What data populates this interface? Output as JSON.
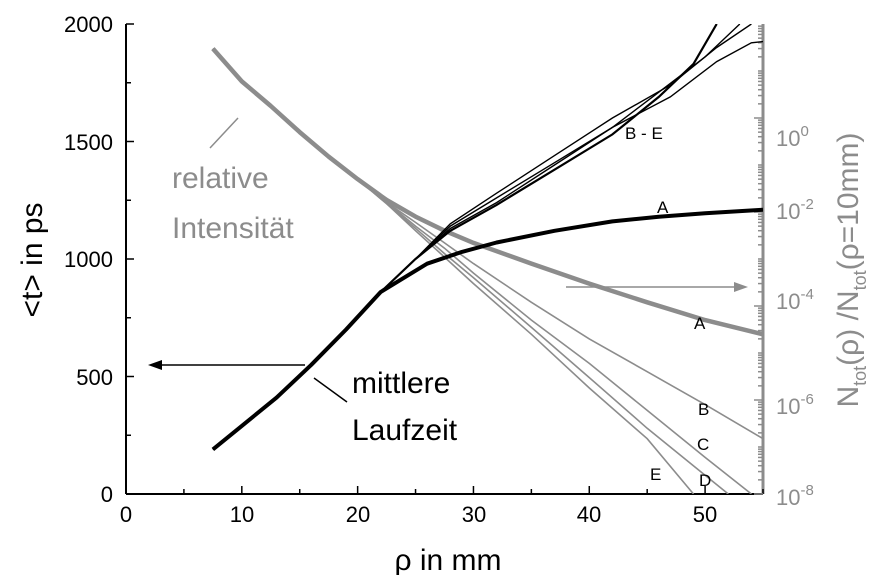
{
  "chart_data": {
    "type": "line",
    "xlabel": "ρ in mm",
    "ylabel_left": "<t> in ps",
    "ylabel_right": {
      "base": "N",
      "sub1": "tot",
      "mid": "(ρ) /N",
      "sub2": "tot",
      "tail": "(ρ=10mm)"
    },
    "xlim": [
      0,
      55
    ],
    "ylim_left": [
      0,
      2000
    ],
    "ylim_right": [
      1e-08,
      100
    ],
    "yscale_right": "log",
    "x_ticks": [
      "0",
      "10",
      "20",
      "30",
      "40",
      "50"
    ],
    "y_left_ticks": [
      "0",
      "500",
      "1000",
      "1500",
      "2000"
    ],
    "y_right_ticks": [
      {
        "base": "10",
        "exp": "0",
        "value": 1
      },
      {
        "base": "10",
        "exp": "-2",
        "value": 0.01
      },
      {
        "base": "10",
        "exp": "-4",
        "value": 0.0001
      },
      {
        "base": "10",
        "exp": "-6",
        "value": 1e-06
      },
      {
        "base": "10",
        "exp": "-8",
        "value": 1e-08
      }
    ],
    "colors": {
      "time": "#000000",
      "intensity": "#8c8c8c"
    },
    "time_series": [
      {
        "name": "A",
        "points": [
          [
            7.5,
            190
          ],
          [
            10,
            290
          ],
          [
            13,
            410
          ],
          [
            16,
            550
          ],
          [
            19,
            700
          ],
          [
            22,
            860
          ],
          [
            26,
            980
          ],
          [
            29,
            1030
          ],
          [
            32,
            1070
          ],
          [
            37,
            1120
          ],
          [
            42,
            1160
          ],
          [
            46,
            1180
          ],
          [
            50,
            1195
          ],
          [
            55,
            1210
          ]
        ]
      },
      {
        "name": "B - E",
        "points": [
          [
            7.5,
            190
          ],
          [
            10,
            290
          ],
          [
            13,
            410
          ],
          [
            16,
            550
          ],
          [
            19,
            700
          ],
          [
            22,
            860
          ],
          [
            25,
            1000
          ],
          [
            28,
            1130
          ],
          [
            32,
            1240
          ],
          [
            37,
            1400
          ],
          [
            42,
            1560
          ],
          [
            47,
            1690
          ],
          [
            51,
            1840
          ],
          [
            54,
            1920
          ],
          [
            55,
            1925
          ]
        ]
      },
      {
        "name": "",
        "points": [
          [
            7.5,
            190
          ],
          [
            10,
            290
          ],
          [
            13,
            410
          ],
          [
            16,
            550
          ],
          [
            19,
            700
          ],
          [
            22,
            860
          ],
          [
            25,
            1000
          ],
          [
            28,
            1150
          ],
          [
            32,
            1280
          ],
          [
            37,
            1440
          ],
          [
            42,
            1600
          ],
          [
            47,
            1740
          ],
          [
            51,
            1900
          ],
          [
            54,
            2000
          ]
        ]
      },
      {
        "name": "",
        "points": [
          [
            7.5,
            190
          ],
          [
            10,
            290
          ],
          [
            13,
            410
          ],
          [
            16,
            550
          ],
          [
            19,
            700
          ],
          [
            22,
            860
          ],
          [
            25,
            1000
          ],
          [
            28,
            1140
          ],
          [
            32,
            1260
          ],
          [
            37,
            1410
          ],
          [
            42,
            1560
          ],
          [
            46,
            1710
          ],
          [
            50,
            1860
          ],
          [
            53,
            2000
          ]
        ]
      },
      {
        "name": "",
        "points": [
          [
            7.5,
            190
          ],
          [
            10,
            290
          ],
          [
            13,
            410
          ],
          [
            16,
            550
          ],
          [
            19,
            700
          ],
          [
            22,
            860
          ],
          [
            25,
            1000
          ],
          [
            28,
            1120
          ],
          [
            32,
            1230
          ],
          [
            37,
            1380
          ],
          [
            42,
            1530
          ],
          [
            46,
            1690
          ],
          [
            49,
            1830
          ],
          [
            51,
            2000
          ]
        ]
      }
    ],
    "intensity_series": [
      {
        "name": "A",
        "points": [
          [
            7.5,
            30
          ],
          [
            10,
            6
          ],
          [
            12.5,
            1.8
          ],
          [
            15,
            0.5
          ],
          [
            17.5,
            0.15
          ],
          [
            20,
            0.05
          ],
          [
            22.5,
            0.018
          ],
          [
            25,
            0.008
          ],
          [
            27.5,
            0.004
          ],
          [
            30,
            0.0022
          ],
          [
            35,
            0.0008
          ],
          [
            40,
            0.0003
          ],
          [
            45,
            0.00012
          ],
          [
            50,
            5e-05
          ],
          [
            55,
            2.5e-05
          ]
        ]
      },
      {
        "name": "B",
        "points": [
          [
            7.5,
            30
          ],
          [
            10,
            6
          ],
          [
            12.5,
            1.8
          ],
          [
            15,
            0.5
          ],
          [
            17.5,
            0.15
          ],
          [
            20,
            0.05
          ],
          [
            22.5,
            0.016
          ],
          [
            25,
            0.006
          ],
          [
            27.5,
            0.0022
          ],
          [
            30,
            0.0008
          ],
          [
            35,
            0.00012
          ],
          [
            40,
            2e-05
          ],
          [
            45,
            4e-06
          ],
          [
            50,
            8e-07
          ],
          [
            55,
            1.5e-07
          ]
        ]
      },
      {
        "name": "C",
        "points": [
          [
            7.5,
            30
          ],
          [
            10,
            6
          ],
          [
            12.5,
            1.8
          ],
          [
            15,
            0.5
          ],
          [
            17.5,
            0.15
          ],
          [
            20,
            0.05
          ],
          [
            22.5,
            0.016
          ],
          [
            25,
            0.005
          ],
          [
            27.5,
            0.0017
          ],
          [
            30,
            0.0005
          ],
          [
            35,
            5e-05
          ],
          [
            40,
            6e-06
          ],
          [
            45,
            6e-07
          ],
          [
            50,
            6e-08
          ],
          [
            54,
            1e-08
          ]
        ]
      },
      {
        "name": "D",
        "points": [
          [
            7.5,
            30
          ],
          [
            10,
            6
          ],
          [
            12.5,
            1.8
          ],
          [
            15,
            0.5
          ],
          [
            17.5,
            0.15
          ],
          [
            20,
            0.05
          ],
          [
            22.5,
            0.015
          ],
          [
            25,
            0.0045
          ],
          [
            27.5,
            0.0013
          ],
          [
            30,
            0.0004
          ],
          [
            35,
            3.5e-05
          ],
          [
            40,
            3e-06
          ],
          [
            45,
            2.5e-07
          ],
          [
            50,
            2.5e-08
          ],
          [
            52,
            1e-08
          ]
        ]
      },
      {
        "name": "E",
        "points": [
          [
            7.5,
            30
          ],
          [
            10,
            6
          ],
          [
            12.5,
            1.8
          ],
          [
            15,
            0.5
          ],
          [
            17.5,
            0.15
          ],
          [
            20,
            0.05
          ],
          [
            22.5,
            0.015
          ],
          [
            25,
            0.004
          ],
          [
            27.5,
            0.0011
          ],
          [
            30,
            0.0003
          ],
          [
            35,
            2.5e-05
          ],
          [
            40,
            1.8e-06
          ],
          [
            45,
            1.5e-07
          ],
          [
            49,
            1e-08
          ]
        ]
      }
    ],
    "annotations": {
      "intensity_label_1": "relative",
      "intensity_label_2": "Intensität",
      "time_label_1": "mittlere",
      "time_label_2": "Laufzeit"
    },
    "series_labels": {
      "time_A": "A",
      "time_BE": "B - E",
      "int_A": "A",
      "int_B": "B",
      "int_C": "C",
      "int_D": "D",
      "int_E": "E"
    }
  }
}
